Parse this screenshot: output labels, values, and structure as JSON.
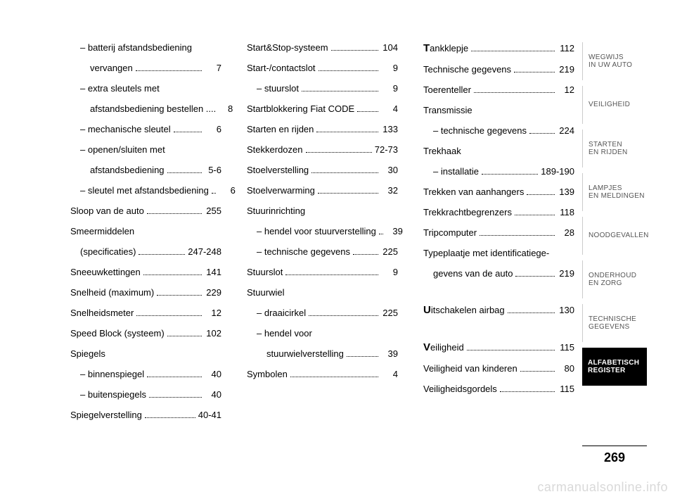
{
  "columns": [
    [
      {
        "label": "– batterij afstandsbediening",
        "sub": true
      },
      {
        "label": "vervangen",
        "page": "7",
        "sub": true,
        "cont": true
      },
      {
        "label": "– extra sleutels met",
        "sub": true
      },
      {
        "label": "afstandsbediening bestellen ....",
        "page": "8",
        "sub": true,
        "cont": true,
        "nodots": true
      },
      {
        "label": "– mechanische sleutel",
        "page": "6",
        "sub": true
      },
      {
        "label": "– openen/sluiten met",
        "sub": true
      },
      {
        "label": "afstandsbediening",
        "page": "5-6",
        "sub": true,
        "cont": true
      },
      {
        "label": "– sleutel met afstandsbediening",
        "page": "6",
        "sub": true
      },
      {
        "label": "Sloop van de auto",
        "page": "255"
      },
      {
        "label": "Smeermiddelen"
      },
      {
        "label": "(specificaties)",
        "page": "247-248",
        "cont": true
      },
      {
        "label": "Sneeuwkettingen",
        "page": "141"
      },
      {
        "label": "Snelheid (maximum)",
        "page": "229"
      },
      {
        "label": "Snelheidsmeter",
        "page": "12"
      },
      {
        "label": "Speed Block (systeem)",
        "page": "102"
      },
      {
        "label": "Spiegels"
      },
      {
        "label": "– binnenspiegel",
        "page": "40",
        "sub": true
      },
      {
        "label": "– buitenspiegels",
        "page": "40",
        "sub": true
      },
      {
        "label": "Spiegelverstelling",
        "page": "40-41"
      }
    ],
    [
      {
        "label": "Start&Stop-systeem",
        "page": "104"
      },
      {
        "label": "Start-/contactslot",
        "page": "9"
      },
      {
        "label": "– stuurslot",
        "page": "9",
        "sub": true
      },
      {
        "label": "Startblokkering Fiat CODE",
        "page": "4"
      },
      {
        "label": "Starten en rijden",
        "page": "133"
      },
      {
        "label": "Stekkerdozen",
        "page": "72-73"
      },
      {
        "label": "Stoelverstelling",
        "page": "30"
      },
      {
        "label": "Stoelverwarming",
        "page": "32"
      },
      {
        "label": "Stuurinrichting"
      },
      {
        "label": "– hendel voor stuurverstelling",
        "page": "39",
        "sub": true
      },
      {
        "label": "– technische gegevens",
        "page": "225",
        "sub": true
      },
      {
        "label": "Stuurslot",
        "page": "9"
      },
      {
        "label": "Stuurwiel"
      },
      {
        "label": "– draaicirkel",
        "page": "225",
        "sub": true
      },
      {
        "label": "– hendel voor",
        "sub": true
      },
      {
        "label": "stuurwielverstelling",
        "page": "39",
        "sub": true,
        "cont": true
      },
      {
        "label": "Symbolen",
        "page": "4"
      }
    ],
    [
      {
        "label": "ankklepje",
        "page": "112",
        "cap": "T"
      },
      {
        "label": "Technische gegevens",
        "page": "219"
      },
      {
        "label": "Toerenteller",
        "page": "12"
      },
      {
        "label": "Transmissie"
      },
      {
        "label": "– technische gegevens",
        "page": "224",
        "sub": true
      },
      {
        "label": "Trekhaak"
      },
      {
        "label": "– installatie",
        "page": "189-190",
        "sub": true
      },
      {
        "label": "Trekken van aanhangers",
        "page": "139"
      },
      {
        "label": "Trekkrachtbegrenzers",
        "page": "118"
      },
      {
        "label": "Tripcomputer",
        "page": "28"
      },
      {
        "label": "Typeplaatje met identificatiege-"
      },
      {
        "label": "gevens van de auto",
        "page": "219",
        "cont": true
      },
      {
        "spacer": true
      },
      {
        "label": "itschakelen airbag",
        "page": "130",
        "cap": "U"
      },
      {
        "spacer": true
      },
      {
        "label": "eiligheid",
        "page": "115",
        "cap": "V"
      },
      {
        "label": "Veiligheid van kinderen",
        "page": "80"
      },
      {
        "label": "Veiligheidsgordels",
        "page": "115"
      }
    ]
  ],
  "tabs": [
    {
      "lines": [
        "WEGWIJS",
        "IN UW AUTO"
      ],
      "active": false
    },
    {
      "lines": [
        "VEILIGHEID"
      ],
      "active": false
    },
    {
      "lines": [
        "STARTEN",
        "EN RIJDEN"
      ],
      "active": false
    },
    {
      "lines": [
        "LAMPJES",
        "EN MELDINGEN"
      ],
      "active": false
    },
    {
      "lines": [
        "NOODGEVALLEN"
      ],
      "active": false
    },
    {
      "lines": [
        "ONDERHOUD",
        "EN ZORG"
      ],
      "active": false
    },
    {
      "lines": [
        "TECHNISCHE",
        "GEGEVENS"
      ],
      "active": false
    },
    {
      "lines": [
        "ALFABETISCH",
        "REGISTER"
      ],
      "active": true
    }
  ],
  "page_number": "269",
  "watermark": "carmanualsonline.info"
}
